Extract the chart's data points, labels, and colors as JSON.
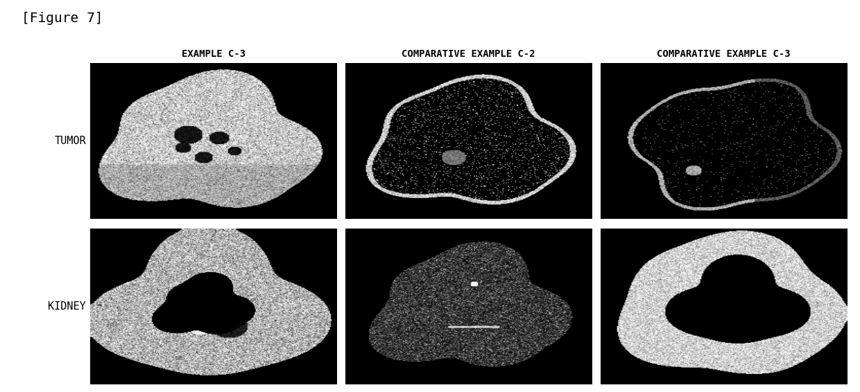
{
  "figure_label": "[Figure 7]",
  "col_headers": [
    "EXAMPLE C-3",
    "COMPARATIVE EXAMPLE C-2",
    "COMPARATIVE EXAMPLE C-3"
  ],
  "row_labels": [
    "TUMOR",
    "KIDNEY"
  ],
  "background_color": "#ffffff",
  "panel_bg": "#000000",
  "text_color": "#000000",
  "figure_label_fontsize": 14,
  "header_fontsize": 10,
  "row_label_fontsize": 11,
  "figsize": [
    12.4,
    5.66
  ],
  "dpi": 100
}
